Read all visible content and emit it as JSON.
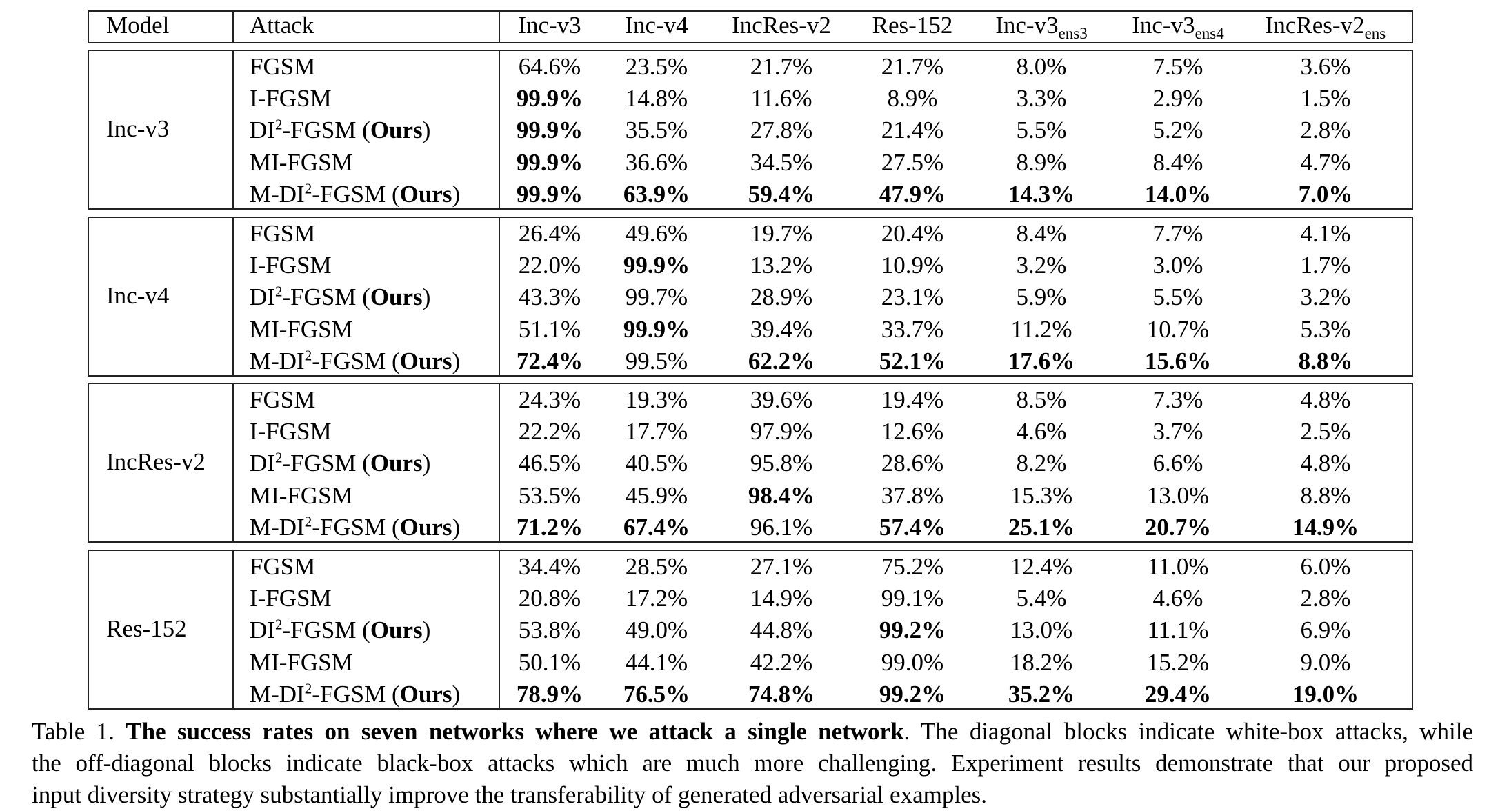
{
  "table": {
    "header": {
      "model": "Model",
      "attack": "Attack",
      "columns": [
        {
          "base": "Inc-v3",
          "sub": ""
        },
        {
          "base": "Inc-v4",
          "sub": ""
        },
        {
          "base": "IncRes-v2",
          "sub": ""
        },
        {
          "base": "Res-152",
          "sub": ""
        },
        {
          "base": "Inc-v3",
          "sub": "ens3"
        },
        {
          "base": "Inc-v3",
          "sub": "ens4"
        },
        {
          "base": "IncRes-v2",
          "sub": "ens"
        }
      ]
    },
    "attacks": [
      {
        "pre": "FGSM",
        "sup": "",
        "post": "",
        "ours": ""
      },
      {
        "pre": "I-FGSM",
        "sup": "",
        "post": "",
        "ours": ""
      },
      {
        "pre": "DI",
        "sup": "2",
        "post": "-FGSM (",
        "ours": "Ours",
        "close": ")"
      },
      {
        "pre": "MI-FGSM",
        "sup": "",
        "post": "",
        "ours": ""
      },
      {
        "pre": "M-DI",
        "sup": "2",
        "post": "-FGSM (",
        "ours": "Ours",
        "close": ")"
      }
    ],
    "blocks": [
      {
        "model": "Inc-v3",
        "rows": [
          [
            [
              "64.6%",
              0
            ],
            [
              "23.5%",
              0
            ],
            [
              "21.7%",
              0
            ],
            [
              "21.7%",
              0
            ],
            [
              "8.0%",
              0
            ],
            [
              "7.5%",
              0
            ],
            [
              "3.6%",
              0
            ]
          ],
          [
            [
              "99.9%",
              1
            ],
            [
              "14.8%",
              0
            ],
            [
              "11.6%",
              0
            ],
            [
              "8.9%",
              0
            ],
            [
              "3.3%",
              0
            ],
            [
              "2.9%",
              0
            ],
            [
              "1.5%",
              0
            ]
          ],
          [
            [
              "99.9%",
              1
            ],
            [
              "35.5%",
              0
            ],
            [
              "27.8%",
              0
            ],
            [
              "21.4%",
              0
            ],
            [
              "5.5%",
              0
            ],
            [
              "5.2%",
              0
            ],
            [
              "2.8%",
              0
            ]
          ],
          [
            [
              "99.9%",
              1
            ],
            [
              "36.6%",
              0
            ],
            [
              "34.5%",
              0
            ],
            [
              "27.5%",
              0
            ],
            [
              "8.9%",
              0
            ],
            [
              "8.4%",
              0
            ],
            [
              "4.7%",
              0
            ]
          ],
          [
            [
              "99.9%",
              1
            ],
            [
              "63.9%",
              1
            ],
            [
              "59.4%",
              1
            ],
            [
              "47.9%",
              1
            ],
            [
              "14.3%",
              1
            ],
            [
              "14.0%",
              1
            ],
            [
              "7.0%",
              1
            ]
          ]
        ]
      },
      {
        "model": "Inc-v4",
        "rows": [
          [
            [
              "26.4%",
              0
            ],
            [
              "49.6%",
              0
            ],
            [
              "19.7%",
              0
            ],
            [
              "20.4%",
              0
            ],
            [
              "8.4%",
              0
            ],
            [
              "7.7%",
              0
            ],
            [
              "4.1%",
              0
            ]
          ],
          [
            [
              "22.0%",
              0
            ],
            [
              "99.9%",
              1
            ],
            [
              "13.2%",
              0
            ],
            [
              "10.9%",
              0
            ],
            [
              "3.2%",
              0
            ],
            [
              "3.0%",
              0
            ],
            [
              "1.7%",
              0
            ]
          ],
          [
            [
              "43.3%",
              0
            ],
            [
              "99.7%",
              0
            ],
            [
              "28.9%",
              0
            ],
            [
              "23.1%",
              0
            ],
            [
              "5.9%",
              0
            ],
            [
              "5.5%",
              0
            ],
            [
              "3.2%",
              0
            ]
          ],
          [
            [
              "51.1%",
              0
            ],
            [
              "99.9%",
              1
            ],
            [
              "39.4%",
              0
            ],
            [
              "33.7%",
              0
            ],
            [
              "11.2%",
              0
            ],
            [
              "10.7%",
              0
            ],
            [
              "5.3%",
              0
            ]
          ],
          [
            [
              "72.4%",
              1
            ],
            [
              "99.5%",
              0
            ],
            [
              "62.2%",
              1
            ],
            [
              "52.1%",
              1
            ],
            [
              "17.6%",
              1
            ],
            [
              "15.6%",
              1
            ],
            [
              "8.8%",
              1
            ]
          ]
        ]
      },
      {
        "model": "IncRes-v2",
        "rows": [
          [
            [
              "24.3%",
              0
            ],
            [
              "19.3%",
              0
            ],
            [
              "39.6%",
              0
            ],
            [
              "19.4%",
              0
            ],
            [
              "8.5%",
              0
            ],
            [
              "7.3%",
              0
            ],
            [
              "4.8%",
              0
            ]
          ],
          [
            [
              "22.2%",
              0
            ],
            [
              "17.7%",
              0
            ],
            [
              "97.9%",
              0
            ],
            [
              "12.6%",
              0
            ],
            [
              "4.6%",
              0
            ],
            [
              "3.7%",
              0
            ],
            [
              "2.5%",
              0
            ]
          ],
          [
            [
              "46.5%",
              0
            ],
            [
              "40.5%",
              0
            ],
            [
              "95.8%",
              0
            ],
            [
              "28.6%",
              0
            ],
            [
              "8.2%",
              0
            ],
            [
              "6.6%",
              0
            ],
            [
              "4.8%",
              0
            ]
          ],
          [
            [
              "53.5%",
              0
            ],
            [
              "45.9%",
              0
            ],
            [
              "98.4%",
              1
            ],
            [
              "37.8%",
              0
            ],
            [
              "15.3%",
              0
            ],
            [
              "13.0%",
              0
            ],
            [
              "8.8%",
              0
            ]
          ],
          [
            [
              "71.2%",
              1
            ],
            [
              "67.4%",
              1
            ],
            [
              "96.1%",
              0
            ],
            [
              "57.4%",
              1
            ],
            [
              "25.1%",
              1
            ],
            [
              "20.7%",
              1
            ],
            [
              "14.9%",
              1
            ]
          ]
        ]
      },
      {
        "model": "Res-152",
        "rows": [
          [
            [
              "34.4%",
              0
            ],
            [
              "28.5%",
              0
            ],
            [
              "27.1%",
              0
            ],
            [
              "75.2%",
              0
            ],
            [
              "12.4%",
              0
            ],
            [
              "11.0%",
              0
            ],
            [
              "6.0%",
              0
            ]
          ],
          [
            [
              "20.8%",
              0
            ],
            [
              "17.2%",
              0
            ],
            [
              "14.9%",
              0
            ],
            [
              "99.1%",
              0
            ],
            [
              "5.4%",
              0
            ],
            [
              "4.6%",
              0
            ],
            [
              "2.8%",
              0
            ]
          ],
          [
            [
              "53.8%",
              0
            ],
            [
              "49.0%",
              0
            ],
            [
              "44.8%",
              0
            ],
            [
              "99.2%",
              1
            ],
            [
              "13.0%",
              0
            ],
            [
              "11.1%",
              0
            ],
            [
              "6.9%",
              0
            ]
          ],
          [
            [
              "50.1%",
              0
            ],
            [
              "44.1%",
              0
            ],
            [
              "42.2%",
              0
            ],
            [
              "99.0%",
              0
            ],
            [
              "18.2%",
              0
            ],
            [
              "15.2%",
              0
            ],
            [
              "9.0%",
              0
            ]
          ],
          [
            [
              "78.9%",
              1
            ],
            [
              "76.5%",
              1
            ],
            [
              "74.8%",
              1
            ],
            [
              "99.2%",
              1
            ],
            [
              "35.2%",
              1
            ],
            [
              "29.4%",
              1
            ],
            [
              "19.0%",
              1
            ]
          ]
        ]
      }
    ]
  },
  "caption": {
    "label": "Table 1.",
    "bold": "The success rates on seven networks where we attack a single network",
    "line1_rest": ". The diagonal blocks indicate white-box attacks, while",
    "line2": "the off-diagonal blocks indicate black-box attacks which are much more challenging. Experiment results demonstrate that our proposed",
    "line3": "input diversity strategy substantially improve the transferability of generated adversarial examples."
  }
}
